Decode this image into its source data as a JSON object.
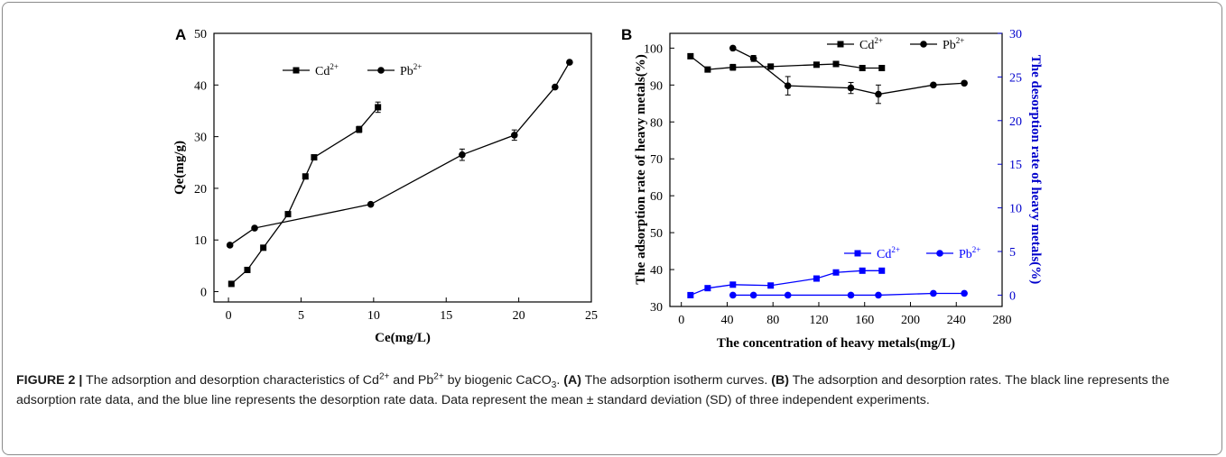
{
  "caption": {
    "label": "FIGURE 2 |",
    "t1": " The adsorption and desorption characteristics of Cd",
    "t1_sup": "2+",
    "t2": " and Pb",
    "t2_sup": "2+",
    "t3": " by biogenic CaCO",
    "t3_sub": "3",
    "t4": ". ",
    "a_label": "(A)",
    "t5": " The adsorption isotherm curves. ",
    "b_label": "(B)",
    "t6": " The adsorption and desorption rates. The black line represents the adsorption rate data, and the blue line represents the desorption rate data. Data represent the mean ± standard deviation (SD) of three independent experiments."
  },
  "chart_data": [
    {
      "type": "scatter",
      "panel": "A",
      "xlabel": "Ce(mg/L)",
      "ylabel": "Qe(mg/g)",
      "xlim": [
        -1,
        25
      ],
      "ylim": [
        -2,
        50
      ],
      "xticks": [
        0,
        5,
        10,
        15,
        20,
        25
      ],
      "yticks": [
        0,
        10,
        20,
        30,
        40,
        50
      ],
      "legend_position": "top-left",
      "series": [
        {
          "name": "Cd",
          "name_sup": "2+",
          "marker": "square",
          "color": "#000000",
          "x": [
            0.2,
            1.3,
            2.4,
            4.1,
            5.3,
            5.9,
            9.0,
            10.3
          ],
          "y": [
            1.5,
            4.2,
            8.5,
            15.0,
            22.3,
            26.0,
            31.4,
            35.7
          ],
          "err": [
            0,
            0,
            0,
            0,
            0,
            0,
            0.6,
            1.0
          ]
        },
        {
          "name": "Pb",
          "name_sup": "2+",
          "marker": "circle",
          "color": "#000000",
          "x": [
            0.1,
            1.8,
            9.8,
            16.1,
            19.7,
            22.5,
            23.5
          ],
          "y": [
            9.0,
            12.3,
            16.9,
            26.5,
            30.3,
            39.6,
            44.4
          ],
          "err": [
            0,
            0,
            0,
            1.1,
            1.0,
            0,
            0
          ]
        }
      ]
    },
    {
      "type": "scatter",
      "panel": "B",
      "xlabel": "The concentration of heavy metals(mg/L)",
      "ylabel": "The adsorption rate of heavy metals(%)",
      "ylabel_right": "The desorption rate of heavy metals(%)",
      "xlim": [
        -10,
        280
      ],
      "ylim": [
        30,
        104
      ],
      "ylim_right": [
        -1.3,
        30
      ],
      "xticks": [
        0,
        40,
        80,
        120,
        160,
        200,
        240,
        280
      ],
      "yticks": [
        30,
        40,
        50,
        60,
        70,
        80,
        90,
        100
      ],
      "yticks_right": [
        0,
        5,
        10,
        15,
        20,
        25,
        30
      ],
      "legend_position": "top-right",
      "legend_right_position": "lower-right",
      "series": [
        {
          "name": "Cd",
          "name_sup": "2+",
          "marker": "square",
          "color": "#000000",
          "axis": "left",
          "x": [
            8,
            23,
            45,
            78,
            118,
            135,
            158,
            175
          ],
          "y": [
            97.8,
            94.2,
            94.8,
            95.0,
            95.5,
            95.7,
            94.6,
            94.6
          ],
          "err": [
            0,
            0,
            0.8,
            0,
            0,
            0,
            0,
            0
          ]
        },
        {
          "name": "Pb",
          "name_sup": "2+",
          "marker": "circle",
          "color": "#000000",
          "axis": "left",
          "x": [
            45,
            63,
            93,
            148,
            172,
            220,
            247
          ],
          "y": [
            100.0,
            97.2,
            89.8,
            89.2,
            87.5,
            90.0,
            90.5
          ],
          "err": [
            0,
            0.8,
            2.5,
            1.5,
            2.5,
            0,
            0.5
          ]
        },
        {
          "name": "Cd",
          "name_sup": "2+",
          "marker": "square",
          "color": "#0000ff",
          "axis": "right",
          "x": [
            8,
            23,
            45,
            78,
            118,
            135,
            158,
            175
          ],
          "y": [
            0.0,
            0.8,
            1.2,
            1.1,
            1.9,
            2.6,
            2.8,
            2.8
          ]
        },
        {
          "name": "Pb",
          "name_sup": "2+",
          "marker": "circle",
          "color": "#0000ff",
          "axis": "right",
          "x": [
            45,
            63,
            93,
            148,
            172,
            220,
            247
          ],
          "y": [
            0.0,
            0.0,
            0.0,
            0.0,
            0.0,
            0.2,
            0.2
          ]
        }
      ]
    }
  ]
}
